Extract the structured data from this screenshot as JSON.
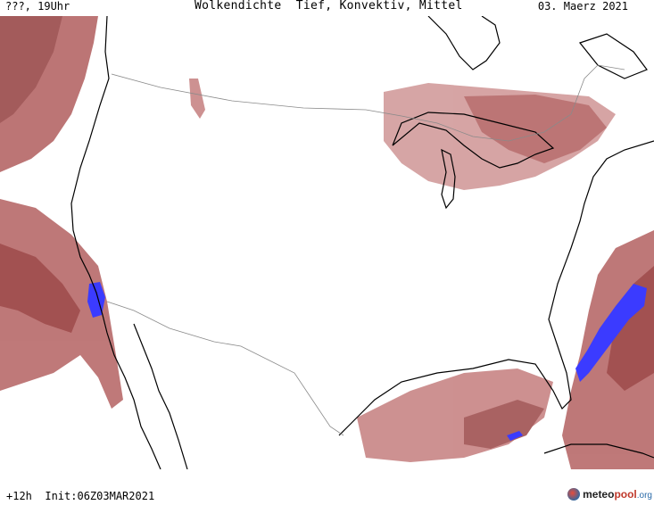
{
  "header": {
    "left_label": "???, 19Uhr",
    "title": "Wolkendichte  Tief, Konvektiv, Mittel",
    "date": "03. Maerz 2021"
  },
  "footer": {
    "run_info": "+12h  Init:06Z03MAR2021",
    "logo_text_a": "meteo",
    "logo_text_b": "pool",
    "logo_text_c": ".org"
  },
  "colors": {
    "cloud_dense": "#a05252",
    "cloud_medium": "#c88585",
    "cloud_light": "#e6bcbc",
    "convective": "#3b3bff",
    "coast": "#000000",
    "border": "#8a8a8a"
  }
}
